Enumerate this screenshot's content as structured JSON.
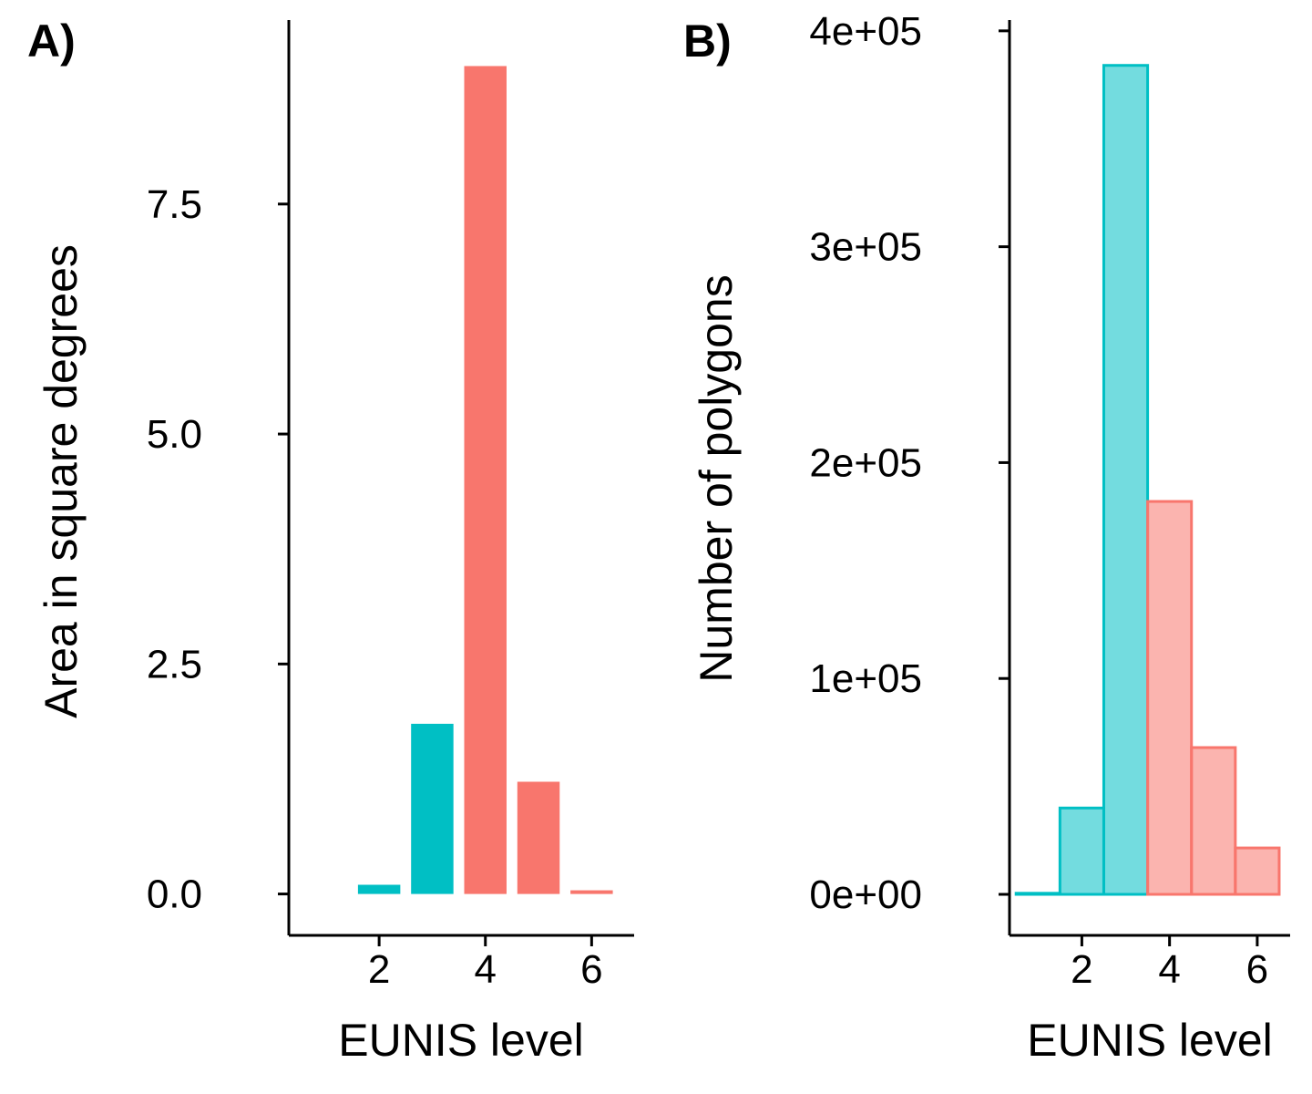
{
  "chart_data": [
    {
      "panel_label": "A)",
      "type": "bar",
      "xlabel": "EUNIS level",
      "ylabel": "Area in square degrees",
      "x_ticks": [
        2,
        4,
        6
      ],
      "x_tick_labels": [
        "2",
        "4",
        "6"
      ],
      "xlim": [
        0.3,
        6.8
      ],
      "y_ticks": [
        0,
        2.5,
        5,
        7.5
      ],
      "y_tick_labels": [
        "0.0",
        "2.5",
        "5.0",
        "7.5"
      ],
      "ylim": [
        -0.45,
        9.5
      ],
      "grid": false,
      "legend": "none",
      "bar_width": 0.9,
      "bars": [
        {
          "x": 2,
          "value": 0.1,
          "color": "#00BFC4"
        },
        {
          "x": 3,
          "value": 1.85,
          "color": "#00BFC4"
        },
        {
          "x": 4,
          "value": 9.0,
          "color": "#F8766D"
        },
        {
          "x": 5,
          "value": 1.22,
          "color": "#F8766D"
        },
        {
          "x": 6,
          "value": 0.04,
          "color": "#F8766D"
        }
      ]
    },
    {
      "panel_label": "B)",
      "type": "bar",
      "xlabel": "EUNIS level",
      "ylabel": "Number of polygons",
      "x_ticks": [
        2,
        4,
        6
      ],
      "x_tick_labels": [
        "2",
        "4",
        "6"
      ],
      "xlim": [
        0.35,
        6.75
      ],
      "y_ticks": [
        0,
        100000,
        200000,
        300000,
        400000
      ],
      "y_tick_labels": [
        "0e+00",
        "1e+05",
        "2e+05",
        "3e+05",
        "4e+05"
      ],
      "ylim": [
        -19000,
        405000
      ],
      "grid": false,
      "legend": "none",
      "bar_width": 1.0,
      "bars": [
        {
          "x": 1,
          "value": 500,
          "fill": "#00BFC4",
          "stroke": "#00BFC4"
        },
        {
          "x": 2,
          "value": 40000,
          "fill": "#00BFC4",
          "stroke": "#00BFC4"
        },
        {
          "x": 3,
          "value": 384000,
          "fill": "#00BFC4",
          "stroke": "#00BFC4"
        },
        {
          "x": 4,
          "value": 182000,
          "fill": "#F8766D",
          "stroke": "#F8766D"
        },
        {
          "x": 5,
          "value": 68000,
          "fill": "#F8766D",
          "stroke": "#F8766D"
        },
        {
          "x": 6,
          "value": 21500,
          "fill": "#F8766D",
          "stroke": "#F8766D"
        }
      ],
      "fill_opacity": 0.55
    }
  ]
}
